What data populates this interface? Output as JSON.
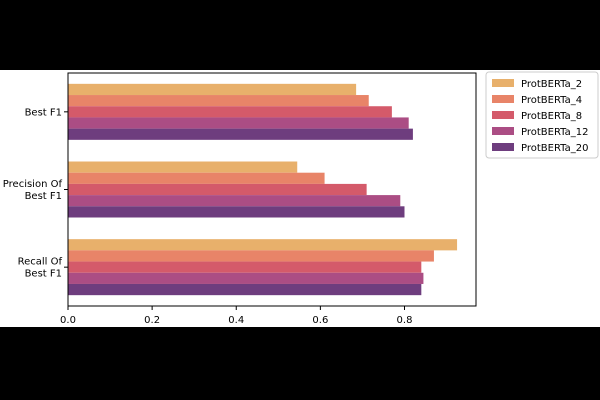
{
  "chart_data": {
    "type": "bar",
    "orientation": "horizontal",
    "title": "",
    "xlabel": "",
    "ylabel": "",
    "categories": [
      [
        "Best F1"
      ],
      [
        "Precision Of",
        "Best F1"
      ],
      [
        "Recall Of",
        "Best F1"
      ]
    ],
    "x_ticks": [
      "0.0",
      "0.2",
      "0.4",
      "0.6",
      "0.8"
    ],
    "x_tick_values": [
      0.0,
      0.2,
      0.4,
      0.6,
      0.8
    ],
    "xlim": [
      0.0,
      0.97
    ],
    "grid": false,
    "legend_position": "outside-top-right",
    "series": [
      {
        "name": "ProtBERTa_2",
        "color": "#e8b06b",
        "values": [
          0.685,
          0.545,
          0.925
        ]
      },
      {
        "name": "ProtBERTa_4",
        "color": "#e88468",
        "values": [
          0.715,
          0.61,
          0.87
        ]
      },
      {
        "name": "ProtBERTa_8",
        "color": "#d45a6a",
        "values": [
          0.77,
          0.71,
          0.84
        ]
      },
      {
        "name": "ProtBERTa_12",
        "color": "#ab4d84",
        "values": [
          0.81,
          0.79,
          0.845
        ]
      },
      {
        "name": "ProtBERTa_20",
        "color": "#6e3d7e",
        "values": [
          0.82,
          0.8,
          0.84
        ]
      }
    ]
  }
}
